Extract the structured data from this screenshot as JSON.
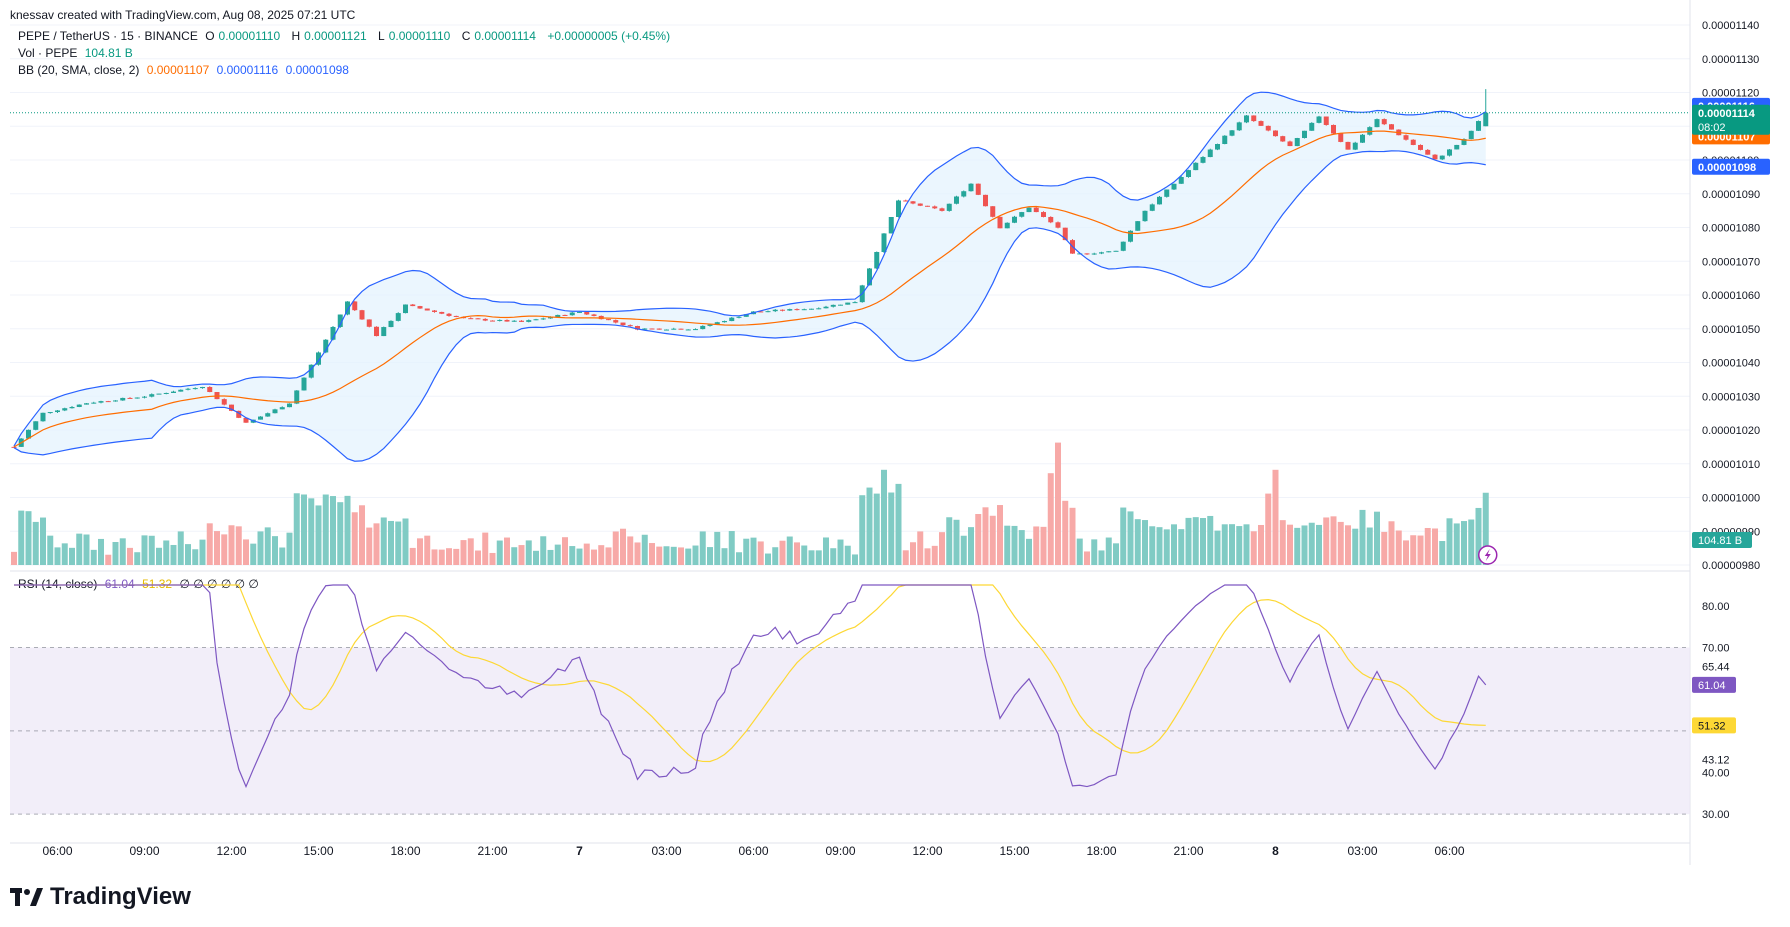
{
  "header": {
    "credit": "knessav created with TradingView.com, Aug 08, 2025 07:21 UTC"
  },
  "legend": {
    "symbol": "PEPE / TetherUS · 15 · BINANCE",
    "o_label": "O",
    "o_value": "0.00001110",
    "h_label": "H",
    "h_value": "0.00001121",
    "l_label": "L",
    "l_value": "0.00001110",
    "c_label": "C",
    "c_value": "0.00001114",
    "change": "+0.00000005 (+0.45%)",
    "vol_label": "Vol · PEPE",
    "vol_value": "104.81 B",
    "bb_label": "BB (20, SMA, close, 2)",
    "bb_basis": "0.00001107",
    "bb_upper": "0.00001116",
    "bb_lower": "0.00001098",
    "rsi_label": "RSI (14, close)",
    "rsi_value": "61.04",
    "rsi_ma_value": "51.32",
    "rsi_extra": "∅ ∅ ∅ ∅ ∅ ∅"
  },
  "price_axis": {
    "ticks": [
      "0.00001140",
      "0.00001130",
      "0.00001120",
      "0.00001110",
      "0.00001100",
      "0.00001090",
      "0.00001080",
      "0.00001070",
      "0.00001060",
      "0.00001050",
      "0.00001040",
      "0.00001030",
      "0.00001020",
      "0.00001010",
      "0.00001000",
      "0.00000990",
      "0.00000980"
    ],
    "badges": {
      "upper": "0.00001116",
      "last": "0.00001114",
      "countdown": "08:02",
      "basis": "0.00001107",
      "lower": "0.00001098",
      "volume": "104.81 B"
    }
  },
  "rsi_axis": {
    "ticks": [
      "80.00",
      "70.00",
      "65.44",
      "43.12",
      "40.00",
      "30.00"
    ],
    "badges": {
      "rsi": "61.04",
      "ma": "51.32"
    }
  },
  "time_axis": {
    "labels": [
      "06:00",
      "09:00",
      "12:00",
      "15:00",
      "18:00",
      "21:00",
      "7",
      "03:00",
      "06:00",
      "09:00",
      "12:00",
      "15:00",
      "18:00",
      "21:00",
      "8",
      "03:00",
      "06:00"
    ]
  },
  "brand": {
    "name": "TradingView"
  },
  "colors": {
    "up": "#26a69a",
    "down": "#ef5350",
    "bb_band": "#2962ff",
    "bb_basis": "#ff6d00",
    "bb_fill": "#e3f2fd",
    "rsi_line": "#7e57c2",
    "rsi_ma": "#fdd835",
    "rsi_bg": "#ede7f6",
    "last_price": "#089981",
    "vol_up": "#80cbc4",
    "vol_down": "#f7a9a7"
  },
  "chart_data": {
    "type": "candlestick",
    "title": "PEPE / TetherUS · 15 · BINANCE",
    "interval": "15",
    "time_range": [
      "Aug 06 ~04:30",
      "Aug 08 07:15"
    ],
    "ylim": [
      9.8e-06,
      1.14e-05
    ],
    "close_keypoints": [
      [
        "Aug 06 04:30",
        1.015e-05
      ],
      [
        "Aug 06 05:30",
        1.025e-05
      ],
      [
        "Aug 06 07:00",
        1.028e-05
      ],
      [
        "Aug 06 09:00",
        1.03e-05
      ],
      [
        "Aug 06 11:00",
        1.033e-05
      ],
      [
        "Aug 06 12:30",
        1.022e-05
      ],
      [
        "Aug 06 14:00",
        1.028e-05
      ],
      [
        "Aug 06 15:00",
        1.043e-05
      ],
      [
        "Aug 06 16:00",
        1.058e-05
      ],
      [
        "Aug 06 17:00",
        1.048e-05
      ],
      [
        "Aug 06 18:00",
        1.057e-05
      ],
      [
        "Aug 06 20:00",
        1.053e-05
      ],
      [
        "Aug 06 22:00",
        1.052e-05
      ],
      [
        "Aug 07 00:00",
        1.055e-05
      ],
      [
        "Aug 07 02:00",
        1.05e-05
      ],
      [
        "Aug 07 04:00",
        1.05e-05
      ],
      [
        "Aug 07 06:00",
        1.055e-05
      ],
      [
        "Aug 07 08:00",
        1.056e-05
      ],
      [
        "Aug 07 09:30",
        1.058e-05
      ],
      [
        "Aug 07 10:00",
        1.068e-05
      ],
      [
        "Aug 07 11:00",
        1.088e-05
      ],
      [
        "Aug 07 12:30",
        1.085e-05
      ],
      [
        "Aug 07 13:30",
        1.093e-05
      ],
      [
        "Aug 07 14:30",
        1.08e-05
      ],
      [
        "Aug 07 15:30",
        1.086e-05
      ],
      [
        "Aug 07 16:30",
        1.08e-05
      ],
      [
        "Aug 07 17:00",
        1.072e-05
      ],
      [
        "Aug 07 18:30",
        1.073e-05
      ],
      [
        "Aug 07 19:30",
        1.085e-05
      ],
      [
        "Aug 07 21:00",
        1.097e-05
      ],
      [
        "Aug 07 23:00",
        1.113e-05
      ],
      [
        "Aug 08 00:30",
        1.104e-05
      ],
      [
        "Aug 08 01:30",
        1.113e-05
      ],
      [
        "Aug 08 02:30",
        1.103e-05
      ],
      [
        "Aug 08 03:30",
        1.112e-05
      ],
      [
        "Aug 08 04:30",
        1.106e-05
      ],
      [
        "Aug 08 05:30",
        1.1e-05
      ],
      [
        "Aug 08 06:30",
        1.106e-05
      ],
      [
        "Aug 08 07:15",
        1.114e-05
      ]
    ],
    "last": {
      "open": 1.11e-05,
      "high": 1.121e-05,
      "low": 1.11e-05,
      "close": 1.114e-05
    },
    "bollinger": {
      "period": 20,
      "mult": 2,
      "basis": 1.107e-05,
      "upper": 1.116e-05,
      "lower": 1.098e-05
    },
    "volume_last": "104.81 B",
    "volume_spikes": [
      [
        "Aug 07 10:30",
        "high"
      ],
      [
        "Aug 07 16:30",
        "highest"
      ],
      [
        "Aug 08 00:00",
        "high"
      ]
    ],
    "rsi": {
      "period": 14,
      "value": 61.04,
      "ma": 51.32,
      "upper_band": 70,
      "lower_band": 30,
      "mid": 50,
      "ylim": [
        25,
        85
      ]
    },
    "xlabel": "",
    "ylabel": ""
  }
}
